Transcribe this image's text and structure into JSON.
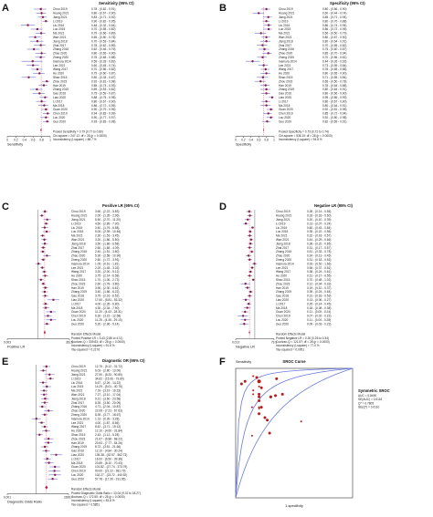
{
  "studies": [
    "Chou 2019",
    "Huang 2021",
    "Jiang 2021",
    "Li 2019",
    "Liu 2016",
    "Luo 2015",
    "Ma 2021",
    "Wan 2021",
    "Jiang 2018",
    "Zhai 2017",
    "Zhang 2016",
    "Zhao 2020",
    "Zheng 2020",
    "Inamura 2014",
    "Lee 2021",
    "Wang 2017",
    "Hu 2020",
    "Shao 2015",
    "Zhou 2023",
    "Han 2019",
    "Zhang 2019",
    "Gao 2016",
    "Liao 2020",
    "Li 2017",
    "Ma 2018",
    "Guan 2020",
    "Chen 2019",
    "Lou 2020",
    "Guo 2020"
  ],
  "chart_data": [
    {
      "letter": "A",
      "type": "forest",
      "header": "Sensitivity (95% CI)",
      "xlabel": "Sensitivity",
      "xlim": [
        0,
        1
      ],
      "ticks": [
        "0",
        "0.2",
        "0.4",
        "0.6",
        "0.8",
        "1"
      ],
      "tick_values": [
        0,
        0.2,
        0.4,
        0.6,
        0.8,
        1
      ],
      "values": [
        0.78,
        0.8,
        0.83,
        0.9,
        0.48,
        0.7,
        0.79,
        0.65,
        0.7,
        0.78,
        0.62,
        0.8,
        0.78,
        0.59,
        0.6,
        0.7,
        0.75,
        0.5,
        0.92,
        0.85,
        0.69,
        0.75,
        0.88,
        0.8,
        0.86,
        0.9,
        0.94,
        0.9,
        0.93
      ],
      "ci_labels": [
        "0.78 - (0.62 - 0.91)",
        "0.80 - (0.67 - 0.90)",
        "0.83 - (0.71 - 0.92)",
        "0.90 - (0.82 - 0.95)",
        "0.48 - (0.32 - 0.64)",
        "0.70 - (0.55 - 0.82)",
        "0.79 - (0.66 - 0.89)",
        "0.65 - (0.50 - 0.78)",
        "0.70 - (0.53 - 0.84)",
        "0.78 - (0.62 - 0.89)",
        "0.62 - (0.46 - 0.76)",
        "0.80 - (0.65 - 0.90)",
        "0.78 - (0.65 - 0.88)",
        "0.59 - (0.33 - 0.82)",
        "0.60 - (0.45 - 0.74)",
        "0.70 - (0.56 - 0.82)",
        "0.75 - (0.60 - 0.87)",
        "0.50 - (0.33 - 0.67)",
        "0.92 - (0.81 - 0.98)",
        "0.85 - (0.73 - 0.93)",
        "0.69 - (0.53 - 0.82)",
        "0.75 - (0.59 - 0.87)",
        "0.88 - (0.75 - 0.95)",
        "0.80 - (0.67 - 0.90)",
        "0.86 - (0.72 - 0.95)",
        "0.90 - (0.79 - 0.96)",
        "0.94 - (0.83 - 0.99)",
        "0.90 - (0.77 - 0.97)",
        "0.93 - (0.83 - 0.98)"
      ],
      "lo": [
        0.62,
        0.67,
        0.71,
        0.82,
        0.32,
        0.55,
        0.66,
        0.5,
        0.53,
        0.62,
        0.46,
        0.65,
        0.65,
        0.33,
        0.45,
        0.56,
        0.6,
        0.33,
        0.81,
        0.73,
        0.53,
        0.59,
        0.75,
        0.67,
        0.72,
        0.79,
        0.83,
        0.77,
        0.83
      ],
      "hi": [
        0.91,
        0.9,
        0.92,
        0.95,
        0.64,
        0.82,
        0.89,
        0.78,
        0.84,
        0.89,
        0.76,
        0.9,
        0.88,
        0.82,
        0.74,
        0.82,
        0.87,
        0.67,
        0.98,
        0.93,
        0.82,
        0.87,
        0.95,
        0.9,
        0.95,
        0.96,
        0.99,
        0.97,
        0.98
      ],
      "pooled": 0.79,
      "pooled_lo": 0.77,
      "pooled_hi": 0.8,
      "footer": [
        "Pooled Sensitivity = 0.79 (0.77 to 0.80)",
        "Chi-square = 247.12; df = 28 (p = 0.0000)",
        "Inconsistency (I-square) = 88.7 %"
      ]
    },
    {
      "letter": "B",
      "type": "forest",
      "header": "Specificity (95% CI)",
      "xlabel": "Specificity",
      "xlim": [
        0,
        1
      ],
      "ticks": [
        "0",
        "0.2",
        "0.4",
        "0.6",
        "0.8",
        "1"
      ],
      "tick_values": [
        0,
        0.2,
        0.4,
        0.6,
        0.8,
        1
      ],
      "values": [
        0.8,
        0.6,
        0.85,
        0.8,
        0.86,
        0.86,
        0.66,
        0.8,
        0.8,
        0.7,
        0.75,
        0.85,
        0.7,
        0.44,
        0.73,
        0.78,
        0.8,
        0.71,
        0.65,
        0.78,
        0.8,
        0.8,
        0.95,
        0.8,
        0.8,
        0.92,
        0.85,
        0.92,
        0.82
      ],
      "ci_labels": [
        "0.80 - (0.66 - 0.90)",
        "0.60 - (0.44 - 0.74)",
        "0.85 - (0.71 - 0.94)",
        "0.80 - (0.70 - 0.88)",
        "0.86 - (0.74 - 0.94)",
        "0.86 - (0.72 - 0.95)",
        "0.66 - (0.50 - 0.79)",
        "0.80 - (0.67 - 0.90)",
        "0.80 - (0.64 - 0.91)",
        "0.70 - (0.55 - 0.82)",
        "0.75 - (0.60 - 0.87)",
        "0.85 - (0.70 - 0.94)",
        "0.70 - (0.56 - 0.81)",
        "0.44 - (0.26 - 0.63)",
        "0.73 - (0.59 - 0.84)",
        "0.78 - (0.65 - 0.88)",
        "0.80 - (0.65 - 0.90)",
        "0.71 - (0.55 - 0.84)",
        "0.65 - (0.50 - 0.78)",
        "0.78 - (0.64 - 0.88)",
        "0.80 - (0.64 - 0.91)",
        "0.80 - (0.66 - 0.90)",
        "0.95 - (0.86 - 0.99)",
        "0.80 - (0.67 - 0.90)",
        "0.80 - (0.64 - 0.91)",
        "0.92 - (0.81 - 0.98)",
        "0.85 - (0.72 - 0.94)",
        "0.92 - (0.80 - 0.98)",
        "0.82 - (0.69 - 0.91)"
      ],
      "lo": [
        0.66,
        0.44,
        0.71,
        0.7,
        0.74,
        0.72,
        0.5,
        0.67,
        0.64,
        0.55,
        0.6,
        0.7,
        0.56,
        0.26,
        0.59,
        0.65,
        0.65,
        0.55,
        0.5,
        0.64,
        0.64,
        0.66,
        0.86,
        0.67,
        0.64,
        0.81,
        0.72,
        0.8,
        0.69
      ],
      "hi": [
        0.9,
        0.74,
        0.94,
        0.88,
        0.94,
        0.95,
        0.79,
        0.9,
        0.91,
        0.82,
        0.87,
        0.94,
        0.81,
        0.63,
        0.84,
        0.88,
        0.9,
        0.84,
        0.78,
        0.88,
        0.91,
        0.9,
        0.99,
        0.9,
        0.91,
        0.98,
        0.94,
        0.98,
        0.91
      ],
      "pooled": 0.73,
      "pooled_lo": 0.72,
      "pooled_hi": 0.74,
      "footer": [
        "Pooled Specificity = 0.73 (0.72 to 0.74)",
        "Chi-square = 536.19; df = 28 (p = 0.0000)",
        "Inconsistency (I-square) = 94.8 %"
      ]
    },
    {
      "letter": "C",
      "type": "forest",
      "header": "Positive LR (95% CI)",
      "xlabel": "Positive LR",
      "log": true,
      "xlim": [
        0.003,
        361.5
      ],
      "ticks": [
        "0.003",
        "361.5"
      ],
      "tick_values": [
        0.003,
        361.5
      ],
      "values": [
        3.6,
        2.0,
        5.5,
        4.5,
        3.4,
        5.0,
        2.3,
        3.2,
        3.5,
        2.6,
        2.4,
        5.3,
        2.6,
        1.05,
        2.2,
        3.2,
        3.75,
        1.7,
        2.6,
        3.9,
        3.4,
        3.75,
        17.6,
        4.0,
        4.3,
        11.2,
        6.3,
        11.25,
        5.2
      ],
      "ci_labels": [
        "3.60 - (2.22 - 5.83)",
        "2.00 - (1.35 - 2.96)",
        "5.50 - (2.70 - 11.20)",
        "4.50 - (2.89 - 7.00)",
        "3.40 - (1.76 - 6.58)",
        "5.00 - (2.39 - 10.46)",
        "2.30 - (1.53 - 3.45)",
        "3.20 - (1.86 - 5.50)",
        "3.50 - (1.86 - 6.58)",
        "2.60 - (1.65 - 4.09)",
        "2.40 - (1.51 - 3.80)",
        "5.30 - (2.58 - 10.90)",
        "2.60 - (1.72 - 3.93)",
        "1.05 - (0.61 - 1.81)",
        "2.20 - (1.45 - 3.33)",
        "3.20 - (2.00 - 5.12)",
        "3.75 - (2.14 - 6.58)",
        "1.70 - (1.06 - 2.73)",
        "2.60 - (1.78 - 3.80)",
        "3.90 - (2.30 - 6.61)",
        "3.40 - (1.86 - 6.22)",
        "3.75 - (2.16 - 6.52)",
        "17.60 - (5.81 - 53.32)",
        "4.00 - (2.35 - 6.80)",
        "4.30 - (2.34 - 7.90)",
        "11.20 - (4.43 - 28.31)",
        "6.30 - (3.15 - 12.58)",
        "11.25 - (4.35 - 29.10)",
        "5.20 - (2.96 - 9.14)"
      ],
      "lo": [
        2.22,
        1.35,
        2.7,
        2.89,
        1.76,
        2.39,
        1.53,
        1.86,
        1.86,
        1.65,
        1.51,
        2.58,
        1.72,
        0.61,
        1.45,
        2.0,
        2.14,
        1.06,
        1.78,
        2.3,
        1.86,
        2.16,
        5.81,
        2.35,
        2.34,
        4.43,
        3.15,
        4.35,
        2.96
      ],
      "hi": [
        5.83,
        2.96,
        11.2,
        7.0,
        6.58,
        10.46,
        3.45,
        5.5,
        6.58,
        4.09,
        3.8,
        10.9,
        3.93,
        1.81,
        3.33,
        5.12,
        6.58,
        2.73,
        3.8,
        6.61,
        6.22,
        6.52,
        53.32,
        6.8,
        7.9,
        28.31,
        12.58,
        29.1,
        9.14
      ],
      "pooled": 3.43,
      "pooled_lo": 2.86,
      "pooled_hi": 4.11,
      "footer": [
        "Random Effects Model",
        "Pooled Positive LR = 3.43 (2.86 to 4.11)",
        "Cochran-Q = 339.83; df = 28 (p = 0.0000)",
        "Inconsistency (I-square) = 91.8 %",
        "Tau-squared = 0.2176"
      ]
    },
    {
      "letter": "D",
      "type": "forest",
      "header": "Negative LR (95% CI)",
      "xlabel": "Negative LR",
      "log": true,
      "xlim": [
        0.013,
        79.5
      ],
      "ticks": [
        "0.013",
        "79.5"
      ],
      "tick_values": [
        0.013,
        79.5
      ],
      "values": [
        0.28,
        0.33,
        0.2,
        0.13,
        0.6,
        0.35,
        0.32,
        0.44,
        0.38,
        0.31,
        0.51,
        0.24,
        0.31,
        0.93,
        0.55,
        0.38,
        0.31,
        0.7,
        0.12,
        0.19,
        0.39,
        0.31,
        0.13,
        0.25,
        0.18,
        0.11,
        0.07,
        0.11,
        0.09
      ],
      "ci_labels": [
        "0.28 - (0.14 - 0.55)",
        "0.33 - (0.18 - 0.60)",
        "0.20 - (0.10 - 0.39)",
        "0.13 - (0.07 - 0.24)",
        "0.60 - (0.43 - 0.84)",
        "0.35 - (0.22 - 0.56)",
        "0.32 - (0.18 - 0.57)",
        "0.44 - (0.29 - 0.66)",
        "0.38 - (0.22 - 0.65)",
        "0.31 - (0.17 - 0.57)",
        "0.51 - (0.33 - 0.78)",
        "0.24 - (0.13 - 0.45)",
        "0.31 - (0.18 - 0.53)",
        "0.93 - (0.52 - 1.66)",
        "0.55 - (0.37 - 0.81)",
        "0.38 - (0.24 - 0.61)",
        "0.31 - (0.17 - 0.55)",
        "0.70 - (0.48 - 1.02)",
        "0.12 - (0.04 - 0.33)",
        "0.19 - (0.10 - 0.37)",
        "0.39 - (0.24 - 0.64)",
        "0.31 - (0.18 - 0.53)",
        "0.13 - (0.06 - 0.27)",
        "0.25 - (0.14 - 0.45)",
        "0.18 - (0.08 - 0.38)",
        "0.11 - (0.05 - 0.24)",
        "0.07 - (0.02 - 0.22)",
        "0.11 - (0.04 - 0.28)",
        "0.09 - (0.03 - 0.23)"
      ],
      "lo": [
        0.14,
        0.18,
        0.1,
        0.07,
        0.43,
        0.22,
        0.18,
        0.29,
        0.22,
        0.17,
        0.33,
        0.13,
        0.18,
        0.52,
        0.37,
        0.24,
        0.17,
        0.48,
        0.04,
        0.1,
        0.24,
        0.18,
        0.06,
        0.14,
        0.08,
        0.05,
        0.02,
        0.04,
        0.03
      ],
      "hi": [
        0.55,
        0.6,
        0.39,
        0.24,
        0.84,
        0.56,
        0.57,
        0.66,
        0.65,
        0.57,
        0.78,
        0.45,
        0.53,
        1.66,
        0.81,
        0.61,
        0.55,
        1.02,
        0.33,
        0.37,
        0.64,
        0.53,
        0.27,
        0.45,
        0.38,
        0.24,
        0.22,
        0.28,
        0.23
      ],
      "pooled": 0.3,
      "pooled_lo": 0.26,
      "pooled_hi": 0.34,
      "footer": [
        "Random Effects Model",
        "Pooled Negative LR = 0.30 (0.26 to 0.34)",
        "Cochran-Q = 121.57; df = 28 (p = 0.0000)",
        "Inconsistency (I-square) = 77.0 %",
        "Tau-squared = 0.0951"
      ]
    },
    {
      "letter": "E",
      "type": "forest",
      "header": "Diagnostic OR (95% CI)",
      "xlabel": "Diagnostic Odds Ratio",
      "log": true,
      "xlim": [
        0.001,
        2699.7
      ],
      "ticks": [
        "0.001",
        "2699.7"
      ],
      "tick_values": [
        0.001,
        2699.7
      ],
      "values": [
        12.75,
        6.03,
        27.5,
        34.62,
        5.67,
        14.29,
        7.19,
        7.27,
        9.21,
        8.39,
        4.71,
        22.08,
        8.39,
        1.13,
        4.0,
        8.42,
        12.1,
        2.43,
        21.67,
        20.53,
        8.72,
        12.1,
        135.38,
        16.0,
        23.89,
        101.82,
        90.0,
        102.27,
        57.78
      ],
      "ci_labels": [
        "12.75 - (5.12 - 31.72)",
        "6.03 - (2.80 - 13.00)",
        "27.50 - (8.33 - 90.80)",
        "34.62 - (15.06 - 79.60)",
        "5.67 - (2.26 - 14.22)",
        "14.29 - (5.01 - 40.75)",
        "7.19 - (3.19 - 16.23)",
        "7.27 - (3.10 - 17.04)",
        "9.21 - (3.60 - 23.58)",
        "8.39 - (3.50 - 20.09)",
        "4.71 - (2.04 - 10.87)",
        "22.08 - (7.21 - 67.63)",
        "8.39 - (3.77 - 18.67)",
        "1.13 - (0.39 - 3.28)",
        "4.00 - (1.87 - 8.56)",
        "8.42 - (3.71 - 19.12)",
        "12.10 - (4.60 - 31.84)",
        "2.43 - (1.12 - 5.28)",
        "21.67 - (6.88 - 68.22)",
        "20.53 - (7.77 - 54.26)",
        "8.72 - (3.51 - 21.66)",
        "12.10 - (4.84 - 30.24)",
        "135.38 - (32.57 - 562.73)",
        "16.00 - (6.50 - 39.38)",
        "23.89 - (8.10 - 70.43)",
        "101.82 - (27.74 - 373.79)",
        "90.00 - (21.22 - 381.73)",
        "102.27 - (23.72 - 440.92)",
        "57.78 - (17.39 - 191.95)"
      ],
      "lo": [
        5.12,
        2.8,
        8.33,
        15.06,
        2.26,
        5.01,
        3.19,
        3.1,
        3.6,
        3.5,
        2.04,
        7.21,
        3.77,
        0.39,
        1.87,
        3.71,
        4.6,
        1.12,
        6.88,
        7.77,
        3.51,
        4.84,
        32.57,
        6.5,
        8.1,
        27.74,
        21.22,
        23.72,
        17.39
      ],
      "hi": [
        31.72,
        13.0,
        90.8,
        79.6,
        14.22,
        40.75,
        16.23,
        17.04,
        23.58,
        20.09,
        10.87,
        67.63,
        18.67,
        3.28,
        8.56,
        19.12,
        31.84,
        5.28,
        68.22,
        54.26,
        21.66,
        30.24,
        562.73,
        39.38,
        70.43,
        373.79,
        381.73,
        440.92,
        191.95
      ],
      "pooled": 13.04,
      "pooled_lo": 9.31,
      "pooled_hi": 18.27,
      "footer": [
        "Random Effects Model",
        "Pooled Diagnostic Odds Ratio = 13.04 (9.31 to 18.27)",
        "Cochran-Q = 172.50; df = 28 (p = 0.0000)",
        "Inconsistency (I-square) = 83.8 %",
        "Tau-squared = 0.5851"
      ]
    },
    {
      "letter": "F",
      "type": "scatter",
      "title": "SROC Curve",
      "ylabel": "Sensitivity",
      "xlabel": "1-specificity",
      "xlim": [
        0,
        1
      ],
      "ylim": [
        0,
        1
      ],
      "legend_title": "Symmetric SROC",
      "legend": [
        "AUC = 0.8490",
        "SE(AUC) = 0.0116",
        "Q* = 0.7805",
        "SE(Q*) = 0.0110"
      ],
      "x": [
        0.2,
        0.4,
        0.15,
        0.2,
        0.14,
        0.14,
        0.34,
        0.2,
        0.2,
        0.3,
        0.25,
        0.15,
        0.3,
        0.56,
        0.27,
        0.22,
        0.2,
        0.29,
        0.35,
        0.22,
        0.2,
        0.2,
        0.05,
        0.2,
        0.2,
        0.08,
        0.15,
        0.08,
        0.18
      ],
      "y": [
        0.78,
        0.8,
        0.83,
        0.9,
        0.48,
        0.7,
        0.79,
        0.65,
        0.7,
        0.78,
        0.62,
        0.8,
        0.78,
        0.59,
        0.6,
        0.7,
        0.75,
        0.5,
        0.92,
        0.85,
        0.69,
        0.75,
        0.88,
        0.8,
        0.86,
        0.9,
        0.94,
        0.9,
        0.93
      ],
      "size": [
        3,
        3,
        2,
        4,
        2,
        2,
        3,
        3,
        2,
        3,
        3,
        2,
        3,
        2,
        3,
        3,
        2,
        3,
        3,
        3,
        2,
        3,
        3,
        3,
        2,
        3,
        2,
        2,
        3
      ]
    }
  ]
}
